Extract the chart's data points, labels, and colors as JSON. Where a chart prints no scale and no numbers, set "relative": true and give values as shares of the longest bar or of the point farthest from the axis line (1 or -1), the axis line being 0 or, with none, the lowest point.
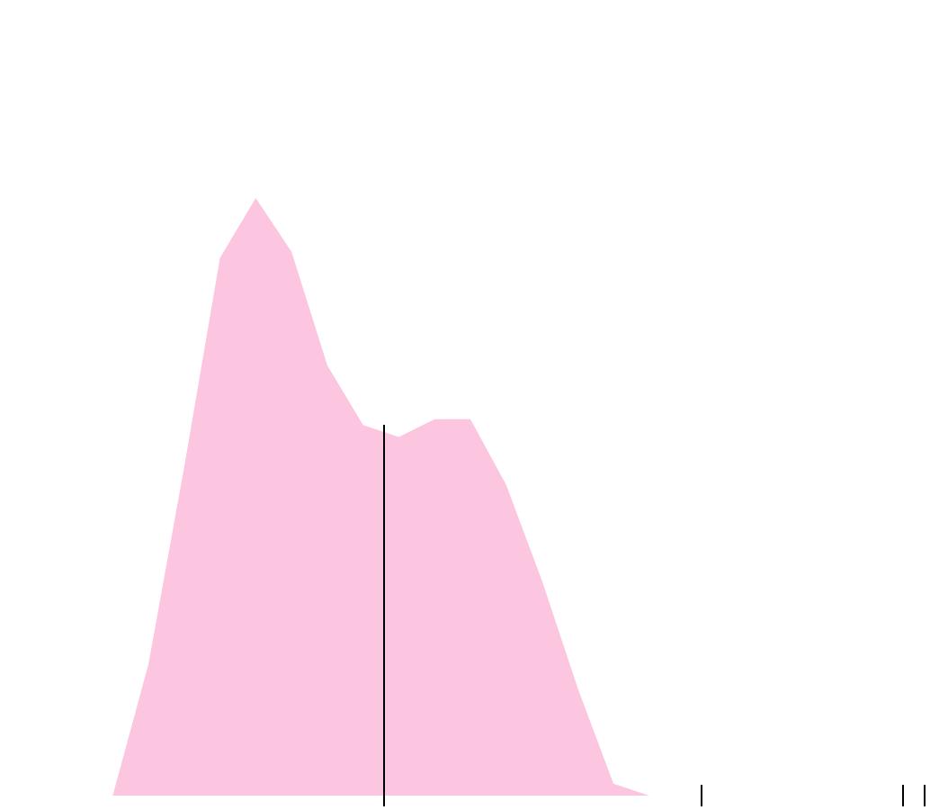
{
  "chart_data": {
    "type": "area",
    "relative": true,
    "categories": [
      null,
      null,
      null,
      null,
      null,
      null,
      null,
      null,
      null,
      null,
      null,
      null,
      null,
      null,
      null,
      null,
      null,
      null,
      null,
      null,
      null,
      null,
      null,
      null,
      null,
      null,
      null
    ],
    "series": [
      {
        "color": "#fcc6e0",
        "values": [
          0,
          0,
          0,
          0,
          0.22,
          0.55,
          0.9,
          1,
          0.91,
          0.72,
          0.62,
          0.6,
          0.63,
          0.63,
          0.52,
          0.36,
          0.18,
          0.02,
          0,
          0,
          0,
          0,
          0,
          0,
          0,
          0,
          0
        ]
      }
    ]
  }
}
